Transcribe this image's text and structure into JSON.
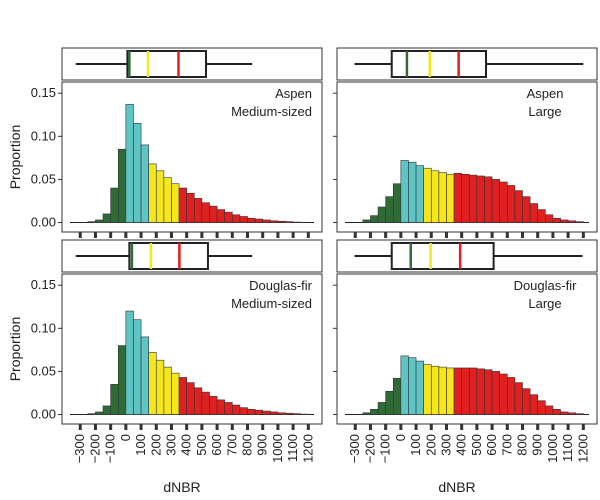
{
  "chart_data": [
    {
      "type": "histogram",
      "title": [
        "Aspen",
        "Medium-sized"
      ],
      "ylabel": "Proportion",
      "bins": [
        -300,
        -250,
        -200,
        -150,
        -100,
        -50,
        0,
        50,
        100,
        150,
        200,
        250,
        300,
        350,
        400,
        450,
        500,
        550,
        600,
        650,
        700,
        750,
        800,
        850,
        900,
        950,
        1000,
        1050,
        1100,
        1150,
        1200,
        1250,
        1300
      ],
      "values": [
        0,
        0.001,
        0.003,
        0.01,
        0.04,
        0.085,
        0.137,
        0.115,
        0.09,
        0.068,
        0.06,
        0.052,
        0.045,
        0.04,
        0.034,
        0.028,
        0.023,
        0.019,
        0.015,
        0.012,
        0.009,
        0.007,
        0.005,
        0.004,
        0.003,
        0.002,
        0.0015,
        0.001,
        0.0005,
        0.0003,
        0,
        0
      ],
      "colors": [
        "#2e6b35",
        "#2e6b35",
        "#2e6b35",
        "#2e6b35",
        "#2e6b35",
        "#2e6b35",
        "#5fc4c4",
        "#5fc4c4",
        "#5fc4c4",
        "#f5e61e",
        "#f5e61e",
        "#f5e61e",
        "#f5e61e",
        "#e02020",
        "#e02020",
        "#e02020",
        "#e02020",
        "#e02020",
        "#e02020",
        "#e02020",
        "#e02020",
        "#e02020",
        "#e02020",
        "#e02020",
        "#e02020",
        "#e02020",
        "#e02020",
        "#e02020",
        "#e02020",
        "#e02020",
        "#e02020",
        "#e02020"
      ],
      "box": {
        "whisker_low": -330,
        "q1": 10,
        "q3": 527,
        "whisker_high": 831
      },
      "box_lines": [
        {
          "value": 23,
          "color": "#2e6b35"
        },
        {
          "value": 146,
          "color": "#f5e61e"
        },
        {
          "value": 346,
          "color": "#e02020"
        }
      ],
      "xlim": [
        -420,
        1290
      ],
      "ylim": [
        -0.011,
        0.163
      ],
      "xticks": [
        -300,
        -200,
        -100,
        0,
        100,
        200,
        300,
        400,
        500,
        600,
        700,
        800,
        900,
        1000,
        1100,
        1200
      ],
      "yticks": [
        {
          "value": 0,
          "label": "0.00"
        },
        {
          "value": 0.05,
          "label": "0.05"
        },
        {
          "value": 0.1,
          "label": "0.10"
        },
        {
          "value": 0.15,
          "label": "0.15"
        }
      ]
    },
    {
      "type": "histogram",
      "title": [
        "Aspen",
        "Large"
      ],
      "bins": [
        -300,
        -250,
        -200,
        -150,
        -100,
        -50,
        0,
        50,
        100,
        150,
        200,
        250,
        300,
        350,
        400,
        450,
        500,
        550,
        600,
        650,
        700,
        750,
        800,
        850,
        900,
        950,
        1000,
        1050,
        1100,
        1150,
        1200,
        1250,
        1300
      ],
      "values": [
        0,
        0.003,
        0.008,
        0.018,
        0.03,
        0.045,
        0.072,
        0.07,
        0.066,
        0.063,
        0.06,
        0.058,
        0.056,
        0.057,
        0.056,
        0.055,
        0.054,
        0.053,
        0.05,
        0.047,
        0.043,
        0.037,
        0.03,
        0.022,
        0.015,
        0.009,
        0.005,
        0.003,
        0.002,
        0.001,
        0,
        0
      ],
      "colors": [
        "#2e6b35",
        "#2e6b35",
        "#2e6b35",
        "#2e6b35",
        "#2e6b35",
        "#2e6b35",
        "#5fc4c4",
        "#5fc4c4",
        "#5fc4c4",
        "#f5e61e",
        "#f5e61e",
        "#f5e61e",
        "#f5e61e",
        "#e02020",
        "#e02020",
        "#e02020",
        "#e02020",
        "#e02020",
        "#e02020",
        "#e02020",
        "#e02020",
        "#e02020",
        "#e02020",
        "#e02020",
        "#e02020",
        "#e02020",
        "#e02020",
        "#e02020",
        "#e02020",
        "#e02020",
        "#e02020",
        "#e02020"
      ],
      "box": {
        "whisker_low": -305,
        "q1": -60,
        "q3": 560,
        "whisker_high": 1200
      },
      "box_lines": [
        {
          "value": 40,
          "color": "#2e6b35"
        },
        {
          "value": 190,
          "color": "#f5e61e"
        },
        {
          "value": 380,
          "color": "#e02020"
        }
      ],
      "xlim": [
        -420,
        1290
      ],
      "ylim": [
        -0.011,
        0.163
      ],
      "xticks": [
        -300,
        -200,
        -100,
        0,
        100,
        200,
        300,
        400,
        500,
        600,
        700,
        800,
        900,
        1000,
        1100,
        1200
      ],
      "yticks": [
        0,
        0.05,
        0.1,
        0.15
      ]
    },
    {
      "type": "histogram",
      "title": [
        "Douglas-fir",
        "Medium-sized"
      ],
      "ylabel": "Proportion",
      "xlabel": "dNBR",
      "bins": [
        -300,
        -250,
        -200,
        -150,
        -100,
        -50,
        0,
        50,
        100,
        150,
        200,
        250,
        300,
        350,
        400,
        450,
        500,
        550,
        600,
        650,
        700,
        750,
        800,
        850,
        900,
        950,
        1000,
        1050,
        1100,
        1150,
        1200,
        1250,
        1300
      ],
      "values": [
        0,
        0.001,
        0.003,
        0.01,
        0.035,
        0.08,
        0.12,
        0.11,
        0.09,
        0.072,
        0.063,
        0.055,
        0.048,
        0.043,
        0.037,
        0.031,
        0.026,
        0.021,
        0.017,
        0.014,
        0.011,
        0.008,
        0.006,
        0.005,
        0.004,
        0.003,
        0.002,
        0.0015,
        0.001,
        0.0005,
        0,
        0
      ],
      "colors": [
        "#2e6b35",
        "#2e6b35",
        "#2e6b35",
        "#2e6b35",
        "#2e6b35",
        "#2e6b35",
        "#5fc4c4",
        "#5fc4c4",
        "#5fc4c4",
        "#f5e61e",
        "#f5e61e",
        "#f5e61e",
        "#f5e61e",
        "#e02020",
        "#e02020",
        "#e02020",
        "#e02020",
        "#e02020",
        "#e02020",
        "#e02020",
        "#e02020",
        "#e02020",
        "#e02020",
        "#e02020",
        "#e02020",
        "#e02020",
        "#e02020",
        "#e02020",
        "#e02020",
        "#e02020",
        "#e02020",
        "#e02020"
      ],
      "box": {
        "whisker_low": -330,
        "q1": 23,
        "q3": 540,
        "whisker_high": 831
      },
      "box_lines": [
        {
          "value": 40,
          "color": "#2e6b35"
        },
        {
          "value": 165,
          "color": "#f5e61e"
        },
        {
          "value": 352,
          "color": "#e02020"
        }
      ],
      "xlim": [
        -420,
        1290
      ],
      "ylim": [
        -0.011,
        0.163
      ],
      "xticks": [
        {
          "value": -300,
          "label": "−300"
        },
        {
          "value": -200,
          "label": "−200"
        },
        {
          "value": -100,
          "label": "−100"
        },
        0,
        100,
        200,
        300,
        400,
        500,
        600,
        700,
        800,
        900,
        1000,
        1100,
        1200
      ],
      "yticks": [
        {
          "value": 0,
          "label": "0.00"
        },
        {
          "value": 0.05,
          "label": "0.05"
        },
        {
          "value": 0.1,
          "label": "0.10"
        },
        {
          "value": 0.15,
          "label": "0.15"
        }
      ]
    },
    {
      "type": "histogram",
      "title": [
        "Douglas-fir",
        "Large"
      ],
      "xlabel": "dNBR",
      "bins": [
        -300,
        -250,
        -200,
        -150,
        -100,
        -50,
        0,
        50,
        100,
        150,
        200,
        250,
        300,
        350,
        400,
        450,
        500,
        550,
        600,
        650,
        700,
        750,
        800,
        850,
        900,
        950,
        1000,
        1050,
        1100,
        1150,
        1200,
        1250,
        1300
      ],
      "values": [
        0,
        0.002,
        0.006,
        0.014,
        0.027,
        0.042,
        0.068,
        0.066,
        0.062,
        0.058,
        0.056,
        0.055,
        0.054,
        0.054,
        0.054,
        0.054,
        0.053,
        0.052,
        0.05,
        0.047,
        0.043,
        0.037,
        0.03,
        0.023,
        0.016,
        0.01,
        0.006,
        0.003,
        0.002,
        0.001,
        0,
        0
      ],
      "colors": [
        "#2e6b35",
        "#2e6b35",
        "#2e6b35",
        "#2e6b35",
        "#2e6b35",
        "#2e6b35",
        "#5fc4c4",
        "#5fc4c4",
        "#5fc4c4",
        "#f5e61e",
        "#f5e61e",
        "#f5e61e",
        "#f5e61e",
        "#e02020",
        "#e02020",
        "#e02020",
        "#e02020",
        "#e02020",
        "#e02020",
        "#e02020",
        "#e02020",
        "#e02020",
        "#e02020",
        "#e02020",
        "#e02020",
        "#e02020",
        "#e02020",
        "#e02020",
        "#e02020",
        "#e02020",
        "#e02020",
        "#e02020"
      ],
      "box": {
        "whisker_low": -305,
        "q1": -60,
        "q3": 610,
        "whisker_high": 1195
      },
      "box_lines": [
        {
          "value": 65,
          "color": "#2e6b35"
        },
        {
          "value": 195,
          "color": "#f5e61e"
        },
        {
          "value": 390,
          "color": "#e02020"
        }
      ],
      "xlim": [
        -420,
        1290
      ],
      "ylim": [
        -0.011,
        0.163
      ],
      "xticks": [
        {
          "value": -300,
          "label": "−300"
        },
        {
          "value": -200,
          "label": "−200"
        },
        {
          "value": -100,
          "label": "−100"
        },
        0,
        100,
        200,
        300,
        400,
        500,
        600,
        700,
        800,
        900,
        1000,
        1100,
        1200
      ],
      "yticks": [
        0,
        0.05,
        0.1,
        0.15
      ]
    }
  ]
}
